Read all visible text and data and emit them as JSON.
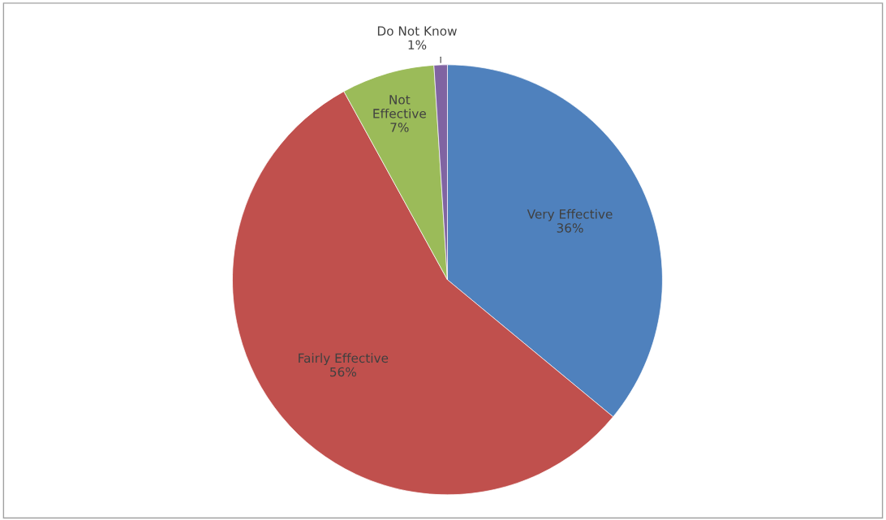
{
  "chart_data": {
    "type": "pie",
    "categories": [
      "Very Effective",
      "Fairly Effective",
      "Not Effective",
      "Do Not Know"
    ],
    "values": [
      36,
      56,
      7,
      1
    ],
    "value_labels": [
      "36%",
      "56%",
      "7%",
      "1%"
    ],
    "colors": [
      "#4f81bd",
      "#c0504d",
      "#9bbb59",
      "#8064a2"
    ],
    "legend": false
  }
}
